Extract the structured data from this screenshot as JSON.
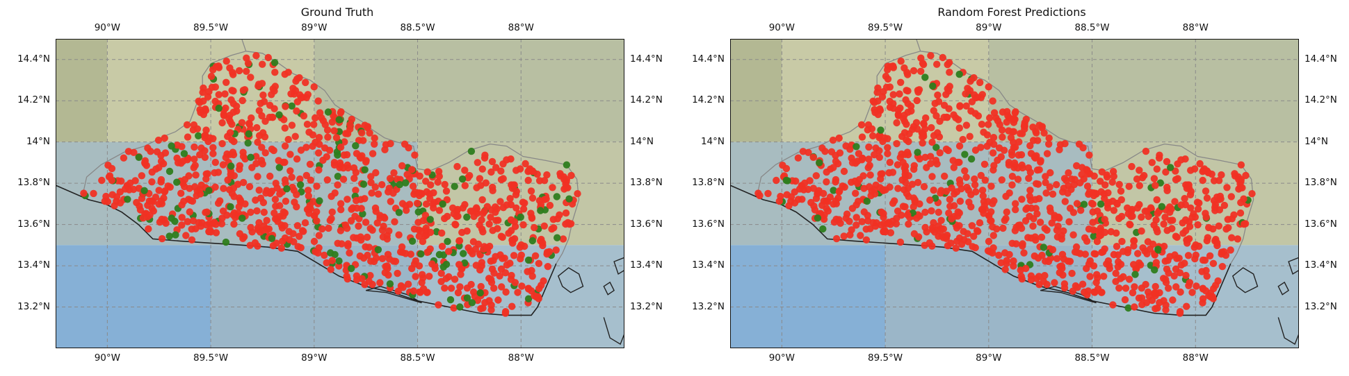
{
  "maps": [
    {
      "title": "Ground Truth",
      "seed": 11,
      "green_fraction": 0.13
    },
    {
      "title": "Random Forest Predictions",
      "seed": 37,
      "green_fraction": 0.05
    }
  ],
  "extent": {
    "lon": [
      -90.25,
      -87.5
    ],
    "lat": [
      13.0,
      14.5
    ]
  },
  "lon_ticks": [
    {
      "value": -90.0,
      "label": "90°W"
    },
    {
      "value": -89.5,
      "label": "89.5°W"
    },
    {
      "value": -89.0,
      "label": "89°W"
    },
    {
      "value": -88.5,
      "label": "88.5°W"
    },
    {
      "value": -88.0,
      "label": "88°W"
    }
  ],
  "lat_ticks": [
    {
      "value": 14.4,
      "label": "14.4°N"
    },
    {
      "value": 14.2,
      "label": "14.2°N"
    },
    {
      "value": 14.0,
      "label": "14°N"
    },
    {
      "value": 13.8,
      "label": "13.8°N"
    },
    {
      "value": 13.6,
      "label": "13.6°N"
    },
    {
      "value": 13.4,
      "label": "13.4°N"
    },
    {
      "value": 13.2,
      "label": "13.2°N"
    }
  ],
  "colors": {
    "red_point": "#f03224",
    "green_point": "#2e7d1e",
    "ocean": "#86b0d6",
    "land_bg": "#c6caa8",
    "grid": "#8a8a8a",
    "coast": "#222222",
    "border": "#888888"
  },
  "point_count": 1150
}
